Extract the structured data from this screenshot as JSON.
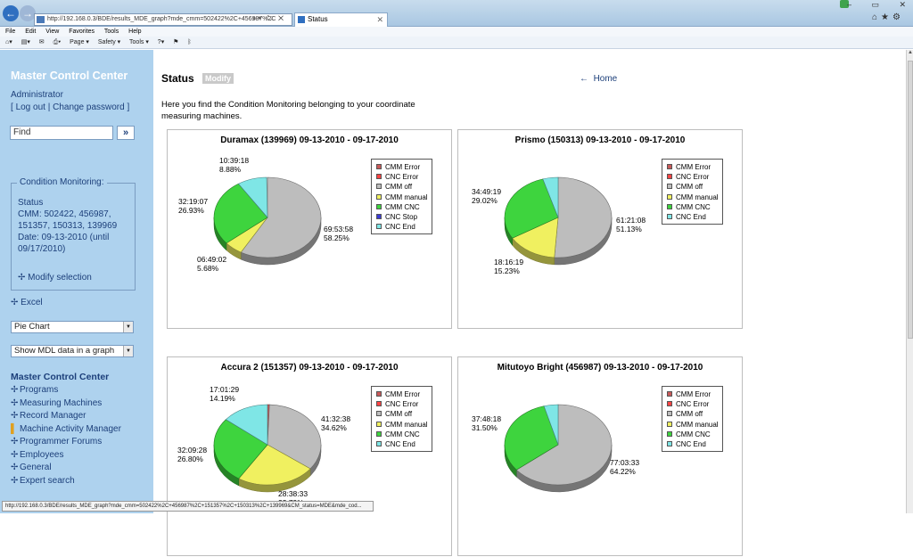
{
  "browser": {
    "url": "http://192.168.0.3/BDE/results_MDE_graph?mde_cmm=502422%2C+456987%2C+151357%2C+150313%2C+139969&CM_status=MDE&mde_cod...",
    "address_text": "http://192.168.0.3/BDE/results_MDE_graph?mde_cmm=502422%2C+456987%2C",
    "tab_title": "Status",
    "menu": [
      "File",
      "Edit",
      "View",
      "Favorites",
      "Tools",
      "Help"
    ],
    "command_bar": [
      "Page ▾",
      "Safety ▾",
      "Tools ▾"
    ]
  },
  "sidebar": {
    "title": "Master Control Center",
    "user": "Administrator",
    "logout": "Log out",
    "change_password": "Change password",
    "find_placeholder": "Find",
    "find_button": "»",
    "cm_legend": "Condition Monitoring:",
    "cm_status": "Status",
    "cm_cmm": "CMM: 502422, 456987, 151357, 150313, 139969",
    "cm_date": "Date: 09-13-2010 (until 09/17/2010)",
    "modify_selection": "Modify selection",
    "excel": "Excel",
    "chart_type": "Pie Chart",
    "mdl_option": "Show MDL data in a graph",
    "nav_title": "Master Control Center",
    "nav": [
      "Programs",
      "Measuring Machines",
      "Record Manager",
      "Machine Activity Manager",
      "Programmer Forums",
      "Employees",
      "General",
      "Expert search"
    ]
  },
  "main": {
    "title": "Status",
    "modify": "Modify",
    "home": "Home",
    "intro": "Here you find the Condition Monitoring belonging to your coordinate measuring machines."
  },
  "colors": {
    "cmm_error": "#c85a5a",
    "cnc_error": "#ff4444",
    "cmm_off": "#bdbdbd",
    "cmm_manual": "#f0f060",
    "cmm_cnc": "#3ed43e",
    "cnc_stop": "#3b3bd4",
    "cnc_end": "#7fe6e6"
  },
  "chart_data": [
    {
      "type": "pie",
      "title": "Duramax (139969) 09-13-2010 - 09-17-2010",
      "legend": [
        "CMM Error",
        "CNC Error",
        "CMM off",
        "CMM manual",
        "CMM CNC",
        "CNC Stop",
        "CNC End"
      ],
      "legend_colors": [
        "cmm_error",
        "cnc_error",
        "cmm_off",
        "cmm_manual",
        "cmm_cnc",
        "cnc_stop",
        "cnc_end"
      ],
      "slices": [
        {
          "label": "CMM off",
          "time": "69:53:58",
          "percent": 58.25,
          "color": "cmm_off"
        },
        {
          "label": "CMM manual",
          "time": "06:49:02",
          "percent": 5.68,
          "color": "cmm_manual"
        },
        {
          "label": "CMM CNC",
          "time": "32:19:07",
          "percent": 26.93,
          "color": "cmm_cnc"
        },
        {
          "label": "CNC End",
          "time": "10:39:18",
          "percent": 8.88,
          "color": "cnc_end"
        }
      ],
      "legend_position": "right"
    },
    {
      "type": "pie",
      "title": "Prismo (150313) 09-13-2010 - 09-17-2010",
      "legend": [
        "CMM Error",
        "CNC Error",
        "CMM off",
        "CMM manual",
        "CMM CNC",
        "CNC End"
      ],
      "legend_colors": [
        "cmm_error",
        "cnc_error",
        "cmm_off",
        "cmm_manual",
        "cmm_cnc",
        "cnc_end"
      ],
      "slices": [
        {
          "label": "CMM off",
          "time": "61:21:08",
          "percent": 51.13,
          "color": "cmm_off"
        },
        {
          "label": "CMM manual",
          "time": "18:16:19",
          "percent": 15.23,
          "color": "cmm_manual"
        },
        {
          "label": "CMM CNC",
          "time": "34:49:19",
          "percent": 29.02,
          "color": "cmm_cnc"
        },
        {
          "label": "CNC End",
          "time": "",
          "percent": 4.62,
          "color": "cnc_end"
        }
      ],
      "legend_position": "right"
    },
    {
      "type": "pie",
      "title": "Accura 2 (151357) 09-13-2010 - 09-17-2010",
      "legend": [
        "CMM Error",
        "CNC Error",
        "CMM off",
        "CMM manual",
        "CMM CNC",
        "CNC End"
      ],
      "legend_colors": [
        "cmm_error",
        "cnc_error",
        "cmm_off",
        "cmm_manual",
        "cmm_cnc",
        "cnc_end"
      ],
      "slices": [
        {
          "label": "CMM Error",
          "time": "",
          "percent": 0.6,
          "color": "cmm_error"
        },
        {
          "label": "CMM off",
          "time": "41:32:38",
          "percent": 34.62,
          "color": "cmm_off"
        },
        {
          "label": "CMM manual",
          "time": "28:38:33",
          "percent": 23.79,
          "color": "cmm_manual"
        },
        {
          "label": "CMM CNC",
          "time": "32:09:28",
          "percent": 26.8,
          "color": "cmm_cnc"
        },
        {
          "label": "CNC End",
          "time": "17:01:29",
          "percent": 14.19,
          "color": "cnc_end"
        }
      ],
      "legend_position": "right"
    },
    {
      "type": "pie",
      "title": "Mitutoyo Bright (456987) 09-13-2010 - 09-17-2010",
      "legend": [
        "CMM Error",
        "CNC Error",
        "CMM off",
        "CMM manual",
        "CMM CNC",
        "CNC End"
      ],
      "legend_colors": [
        "cmm_error",
        "cnc_error",
        "cmm_off",
        "cmm_manual",
        "cmm_cnc",
        "cnc_end"
      ],
      "slices": [
        {
          "label": "CMM off",
          "time": "77:03:33",
          "percent": 64.22,
          "color": "cmm_off"
        },
        {
          "label": "CMM CNC",
          "time": "37:48:18",
          "percent": 31.5,
          "color": "cmm_cnc"
        },
        {
          "label": "CNC End",
          "time": "",
          "percent": 4.28,
          "color": "cnc_end"
        }
      ],
      "legend_position": "right"
    }
  ]
}
